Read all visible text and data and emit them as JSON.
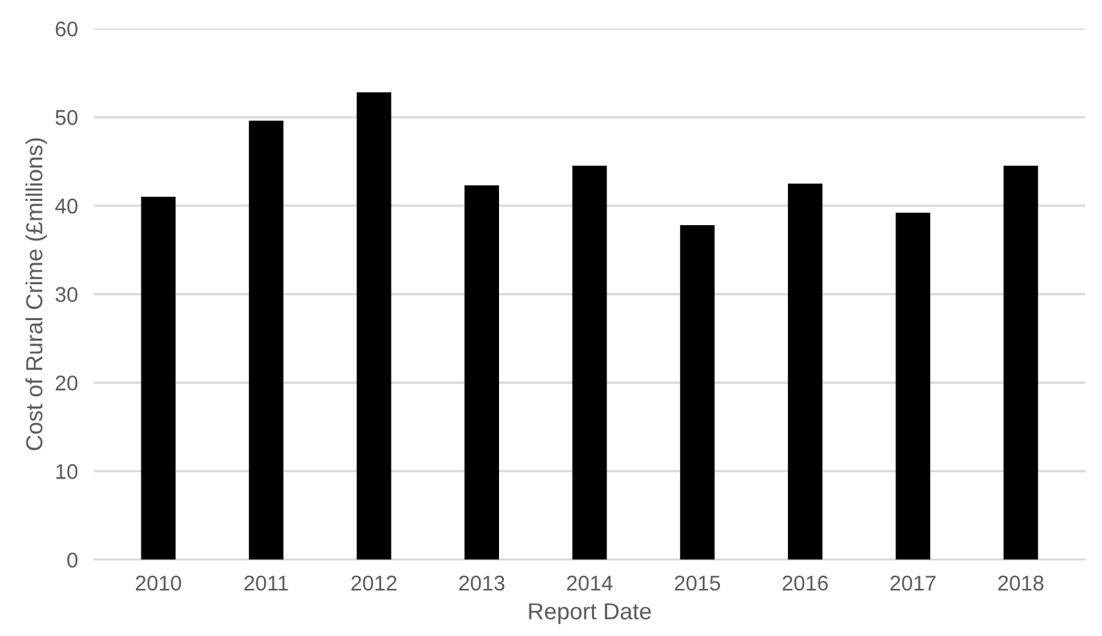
{
  "chart_data": {
    "type": "bar",
    "xlabel": "Report Date",
    "ylabel": "Cost of Rural Crime (£millions)",
    "categories": [
      "2010",
      "2011",
      "2012",
      "2013",
      "2014",
      "2015",
      "2016",
      "2017",
      "2018"
    ],
    "values": [
      41.0,
      49.6,
      52.8,
      42.3,
      44.5,
      37.8,
      42.5,
      39.2,
      44.5
    ],
    "color": "#000000",
    "ylim": [
      0,
      60
    ],
    "yticks": [
      0,
      10,
      20,
      30,
      40,
      50,
      60
    ],
    "grid": "y"
  }
}
